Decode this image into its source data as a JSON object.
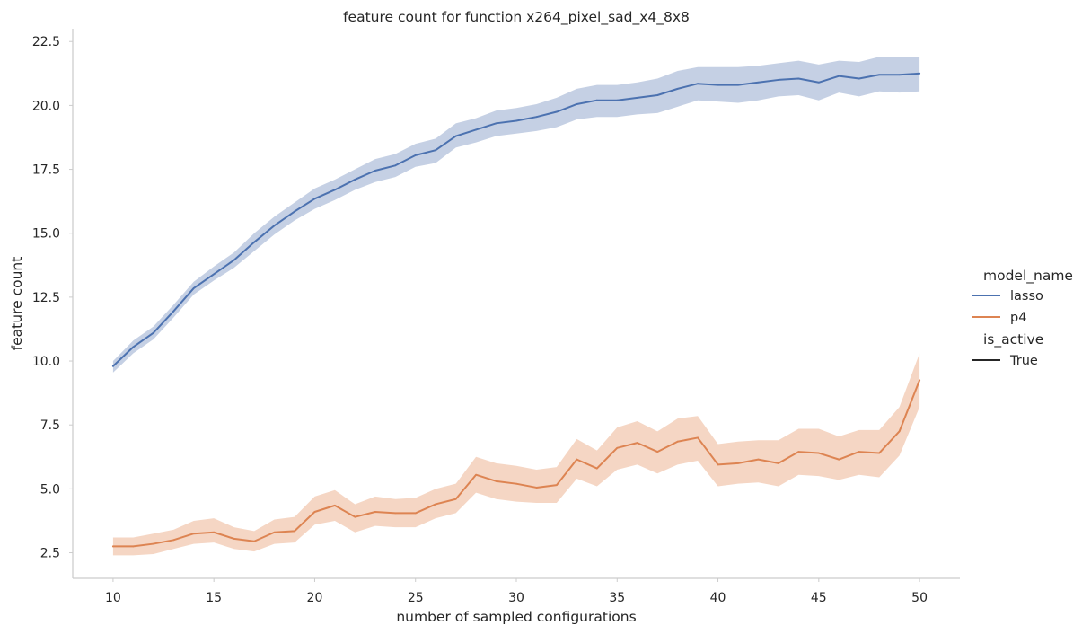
{
  "chart_data": {
    "type": "line",
    "title": "feature count for function x264_pixel_sad_x4_8x8",
    "xlabel": "number of sampled configurations",
    "ylabel": "feature count",
    "xlim": [
      8,
      52
    ],
    "ylim": [
      1.5,
      23.0
    ],
    "xticks": [
      10,
      15,
      20,
      25,
      30,
      35,
      40,
      45,
      50
    ],
    "xtick_labels": [
      "10",
      "15",
      "20",
      "25",
      "30",
      "35",
      "40",
      "45",
      "50"
    ],
    "yticks": [
      2.5,
      5.0,
      7.5,
      10.0,
      12.5,
      15.0,
      17.5,
      20.0,
      22.5
    ],
    "ytick_labels": [
      "2.5",
      "5.0",
      "7.5",
      "10.0",
      "12.5",
      "15.0",
      "17.5",
      "20.0",
      "22.5"
    ],
    "grid": false,
    "legend": {
      "position": "right",
      "hue_title": "model_name",
      "style_title": "is_active",
      "style_entries": [
        "True"
      ]
    },
    "x": [
      10,
      11,
      12,
      13,
      14,
      15,
      16,
      17,
      18,
      19,
      20,
      21,
      22,
      23,
      24,
      25,
      26,
      27,
      28,
      29,
      30,
      31,
      32,
      33,
      34,
      35,
      36,
      37,
      38,
      39,
      40,
      41,
      42,
      43,
      44,
      45,
      46,
      47,
      48,
      49,
      50
    ],
    "series": [
      {
        "name": "lasso",
        "color": "#4c72b0",
        "band_color": "#c5d0e4",
        "values": [
          9.8,
          10.55,
          11.1,
          11.95,
          12.85,
          13.4,
          13.95,
          14.65,
          15.3,
          15.85,
          16.35,
          16.7,
          17.1,
          17.45,
          17.65,
          18.05,
          18.25,
          18.8,
          19.05,
          19.3,
          19.4,
          19.55,
          19.75,
          20.05,
          20.2,
          20.2,
          20.3,
          20.4,
          20.65,
          20.85,
          20.8,
          20.8,
          20.9,
          21.0,
          21.05,
          20.9,
          21.15,
          21.05,
          21.2,
          21.2,
          21.25
        ],
        "ci_low": [
          9.55,
          10.3,
          10.85,
          11.7,
          12.6,
          13.15,
          13.65,
          14.3,
          14.95,
          15.5,
          15.95,
          16.3,
          16.7,
          17.0,
          17.2,
          17.6,
          17.75,
          18.35,
          18.55,
          18.8,
          18.9,
          19.0,
          19.15,
          19.45,
          19.55,
          19.55,
          19.65,
          19.7,
          19.95,
          20.2,
          20.15,
          20.1,
          20.2,
          20.35,
          20.4,
          20.2,
          20.5,
          20.35,
          20.55,
          20.5,
          20.55
        ],
        "ci_high": [
          10.0,
          10.8,
          11.35,
          12.2,
          13.1,
          13.7,
          14.25,
          15.0,
          15.65,
          16.2,
          16.75,
          17.1,
          17.5,
          17.9,
          18.1,
          18.5,
          18.7,
          19.3,
          19.5,
          19.8,
          19.9,
          20.05,
          20.3,
          20.65,
          20.8,
          20.8,
          20.9,
          21.05,
          21.35,
          21.5,
          21.5,
          21.5,
          21.55,
          21.65,
          21.75,
          21.6,
          21.75,
          21.7,
          21.9,
          21.9,
          21.9
        ]
      },
      {
        "name": "p4",
        "color": "#dd8452",
        "band_color": "#f5d6c4",
        "values": [
          2.75,
          2.75,
          2.85,
          3.0,
          3.25,
          3.3,
          3.05,
          2.95,
          3.3,
          3.35,
          4.1,
          4.35,
          3.9,
          4.1,
          4.05,
          4.05,
          4.4,
          4.6,
          5.55,
          5.3,
          5.2,
          5.05,
          5.15,
          6.15,
          5.8,
          6.6,
          6.8,
          6.45,
          6.85,
          7.0,
          5.95,
          6.0,
          6.15,
          6.0,
          6.45,
          6.4,
          6.15,
          6.45,
          6.4,
          7.25,
          9.25
        ],
        "ci_low": [
          2.4,
          2.4,
          2.45,
          2.65,
          2.85,
          2.9,
          2.65,
          2.55,
          2.85,
          2.9,
          3.6,
          3.75,
          3.3,
          3.55,
          3.5,
          3.5,
          3.85,
          4.05,
          4.85,
          4.6,
          4.5,
          4.45,
          4.45,
          5.4,
          5.1,
          5.75,
          5.95,
          5.6,
          5.95,
          6.1,
          5.1,
          5.2,
          5.25,
          5.1,
          5.55,
          5.5,
          5.35,
          5.55,
          5.45,
          6.3,
          8.2
        ],
        "ci_high": [
          3.1,
          3.1,
          3.25,
          3.4,
          3.75,
          3.85,
          3.5,
          3.35,
          3.8,
          3.9,
          4.7,
          4.95,
          4.4,
          4.7,
          4.6,
          4.65,
          5.0,
          5.2,
          6.25,
          6.0,
          5.9,
          5.75,
          5.85,
          6.95,
          6.5,
          7.4,
          7.65,
          7.25,
          7.75,
          7.85,
          6.75,
          6.85,
          6.9,
          6.9,
          7.35,
          7.35,
          7.05,
          7.3,
          7.3,
          8.2,
          10.3
        ]
      }
    ]
  }
}
